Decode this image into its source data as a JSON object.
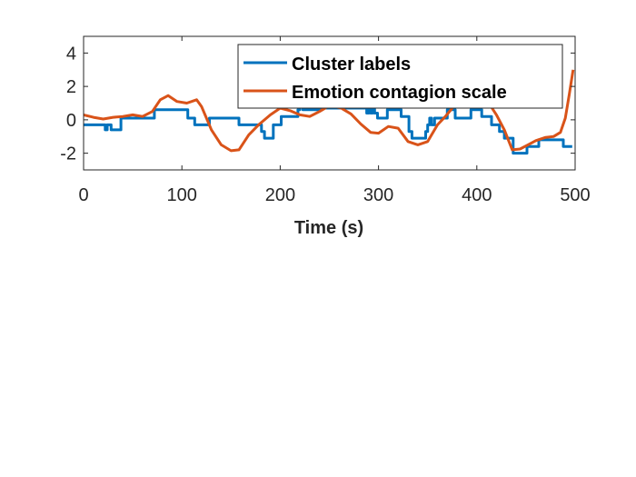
{
  "chart_data": {
    "type": "line",
    "xlabel": "Time (s)",
    "ylabel": "",
    "xlim": [
      0,
      500
    ],
    "ylim": [
      -3,
      5
    ],
    "xticks": [
      0,
      100,
      200,
      300,
      400,
      500
    ],
    "yticks": [
      -2,
      0,
      2,
      4
    ],
    "xtick_labels": [
      "0",
      "100",
      "200",
      "300",
      "400",
      "500"
    ],
    "ytick_labels": [
      "-2",
      "0",
      "2",
      "4"
    ],
    "grid": false,
    "legend_position": "top-right",
    "series": [
      {
        "name": "Cluster labels",
        "color": "#0072BD",
        "step": true,
        "points": [
          [
            0,
            -0.3
          ],
          [
            20,
            -0.3
          ],
          [
            22,
            -0.6
          ],
          [
            24,
            -0.3
          ],
          [
            26,
            -0.3
          ],
          [
            28,
            -0.6
          ],
          [
            35,
            -0.6
          ],
          [
            38,
            0.1
          ],
          [
            70,
            0.1
          ],
          [
            72,
            0.6
          ],
          [
            103,
            0.6
          ],
          [
            106,
            0.1
          ],
          [
            110,
            0.1
          ],
          [
            113,
            -0.3
          ],
          [
            125,
            -0.3
          ],
          [
            128,
            0.1
          ],
          [
            155,
            0.1
          ],
          [
            158,
            -0.3
          ],
          [
            178,
            -0.3
          ],
          [
            181,
            -0.7
          ],
          [
            184,
            -1.1
          ],
          [
            190,
            -1.1
          ],
          [
            193,
            -0.3
          ],
          [
            198,
            -0.3
          ],
          [
            201,
            0.2
          ],
          [
            215,
            0.2
          ],
          [
            218,
            0.6
          ],
          [
            220,
            1.1
          ],
          [
            223,
            0.6
          ],
          [
            238,
            0.6
          ],
          [
            241,
            0.7
          ],
          [
            285,
            0.7
          ],
          [
            288,
            0.4
          ],
          [
            290,
            0.7
          ],
          [
            292,
            0.4
          ],
          [
            294,
            0.7
          ],
          [
            296,
            0.4
          ],
          [
            299,
            0.1
          ],
          [
            306,
            0.1
          ],
          [
            309,
            0.6
          ],
          [
            320,
            0.6
          ],
          [
            323,
            0.2
          ],
          [
            328,
            0.2
          ],
          [
            331,
            -0.7
          ],
          [
            334,
            -1.1
          ],
          [
            345,
            -1.1
          ],
          [
            348,
            -0.7
          ],
          [
            350,
            -0.3
          ],
          [
            352,
            0.1
          ],
          [
            354,
            -0.3
          ],
          [
            357,
            0.1
          ],
          [
            367,
            0.1
          ],
          [
            370,
            0.6
          ],
          [
            375,
            0.6
          ],
          [
            378,
            0.1
          ],
          [
            391,
            0.1
          ],
          [
            394,
            0.6
          ],
          [
            402,
            0.6
          ],
          [
            405,
            0.2
          ],
          [
            412,
            0.2
          ],
          [
            415,
            -0.3
          ],
          [
            420,
            -0.3
          ],
          [
            423,
            -0.7
          ],
          [
            428,
            -1.1
          ],
          [
            434,
            -1.1
          ],
          [
            437,
            -2
          ],
          [
            448,
            -2
          ],
          [
            451,
            -1.6
          ],
          [
            460,
            -1.6
          ],
          [
            463,
            -1.2
          ],
          [
            485,
            -1.2
          ],
          [
            488,
            -1.6
          ],
          [
            497,
            -1.6
          ]
        ]
      },
      {
        "name": "Emotion contagion scale",
        "color": "#D95319",
        "step": false,
        "points": [
          [
            0,
            0.3
          ],
          [
            10,
            0.15
          ],
          [
            20,
            0.05
          ],
          [
            30,
            0.15
          ],
          [
            40,
            0.2
          ],
          [
            50,
            0.3
          ],
          [
            60,
            0.2
          ],
          [
            70,
            0.5
          ],
          [
            78,
            1.2
          ],
          [
            86,
            1.45
          ],
          [
            95,
            1.1
          ],
          [
            105,
            1.0
          ],
          [
            115,
            1.2
          ],
          [
            120,
            0.8
          ],
          [
            130,
            -0.6
          ],
          [
            140,
            -1.5
          ],
          [
            150,
            -1.85
          ],
          [
            158,
            -1.8
          ],
          [
            168,
            -0.9
          ],
          [
            178,
            -0.3
          ],
          [
            190,
            0.3
          ],
          [
            200,
            0.7
          ],
          [
            210,
            0.55
          ],
          [
            220,
            0.3
          ],
          [
            230,
            0.2
          ],
          [
            240,
            0.5
          ],
          [
            250,
            0.85
          ],
          [
            262,
            0.7
          ],
          [
            272,
            0.35
          ],
          [
            282,
            -0.25
          ],
          [
            292,
            -0.75
          ],
          [
            300,
            -0.8
          ],
          [
            310,
            -0.4
          ],
          [
            320,
            -0.5
          ],
          [
            330,
            -1.3
          ],
          [
            340,
            -1.5
          ],
          [
            350,
            -1.3
          ],
          [
            360,
            -0.3
          ],
          [
            368,
            0.2
          ],
          [
            375,
            0.7
          ],
          [
            385,
            1.6
          ],
          [
            395,
            1.7
          ],
          [
            410,
            1.2
          ],
          [
            420,
            0.3
          ],
          [
            428,
            -0.6
          ],
          [
            436,
            -1.8
          ],
          [
            444,
            -1.75
          ],
          [
            452,
            -1.5
          ],
          [
            460,
            -1.25
          ],
          [
            470,
            -1.05
          ],
          [
            478,
            -1.0
          ],
          [
            485,
            -0.75
          ],
          [
            490,
            0.1
          ],
          [
            494,
            1.5
          ],
          [
            498,
            3.0
          ]
        ]
      }
    ]
  }
}
